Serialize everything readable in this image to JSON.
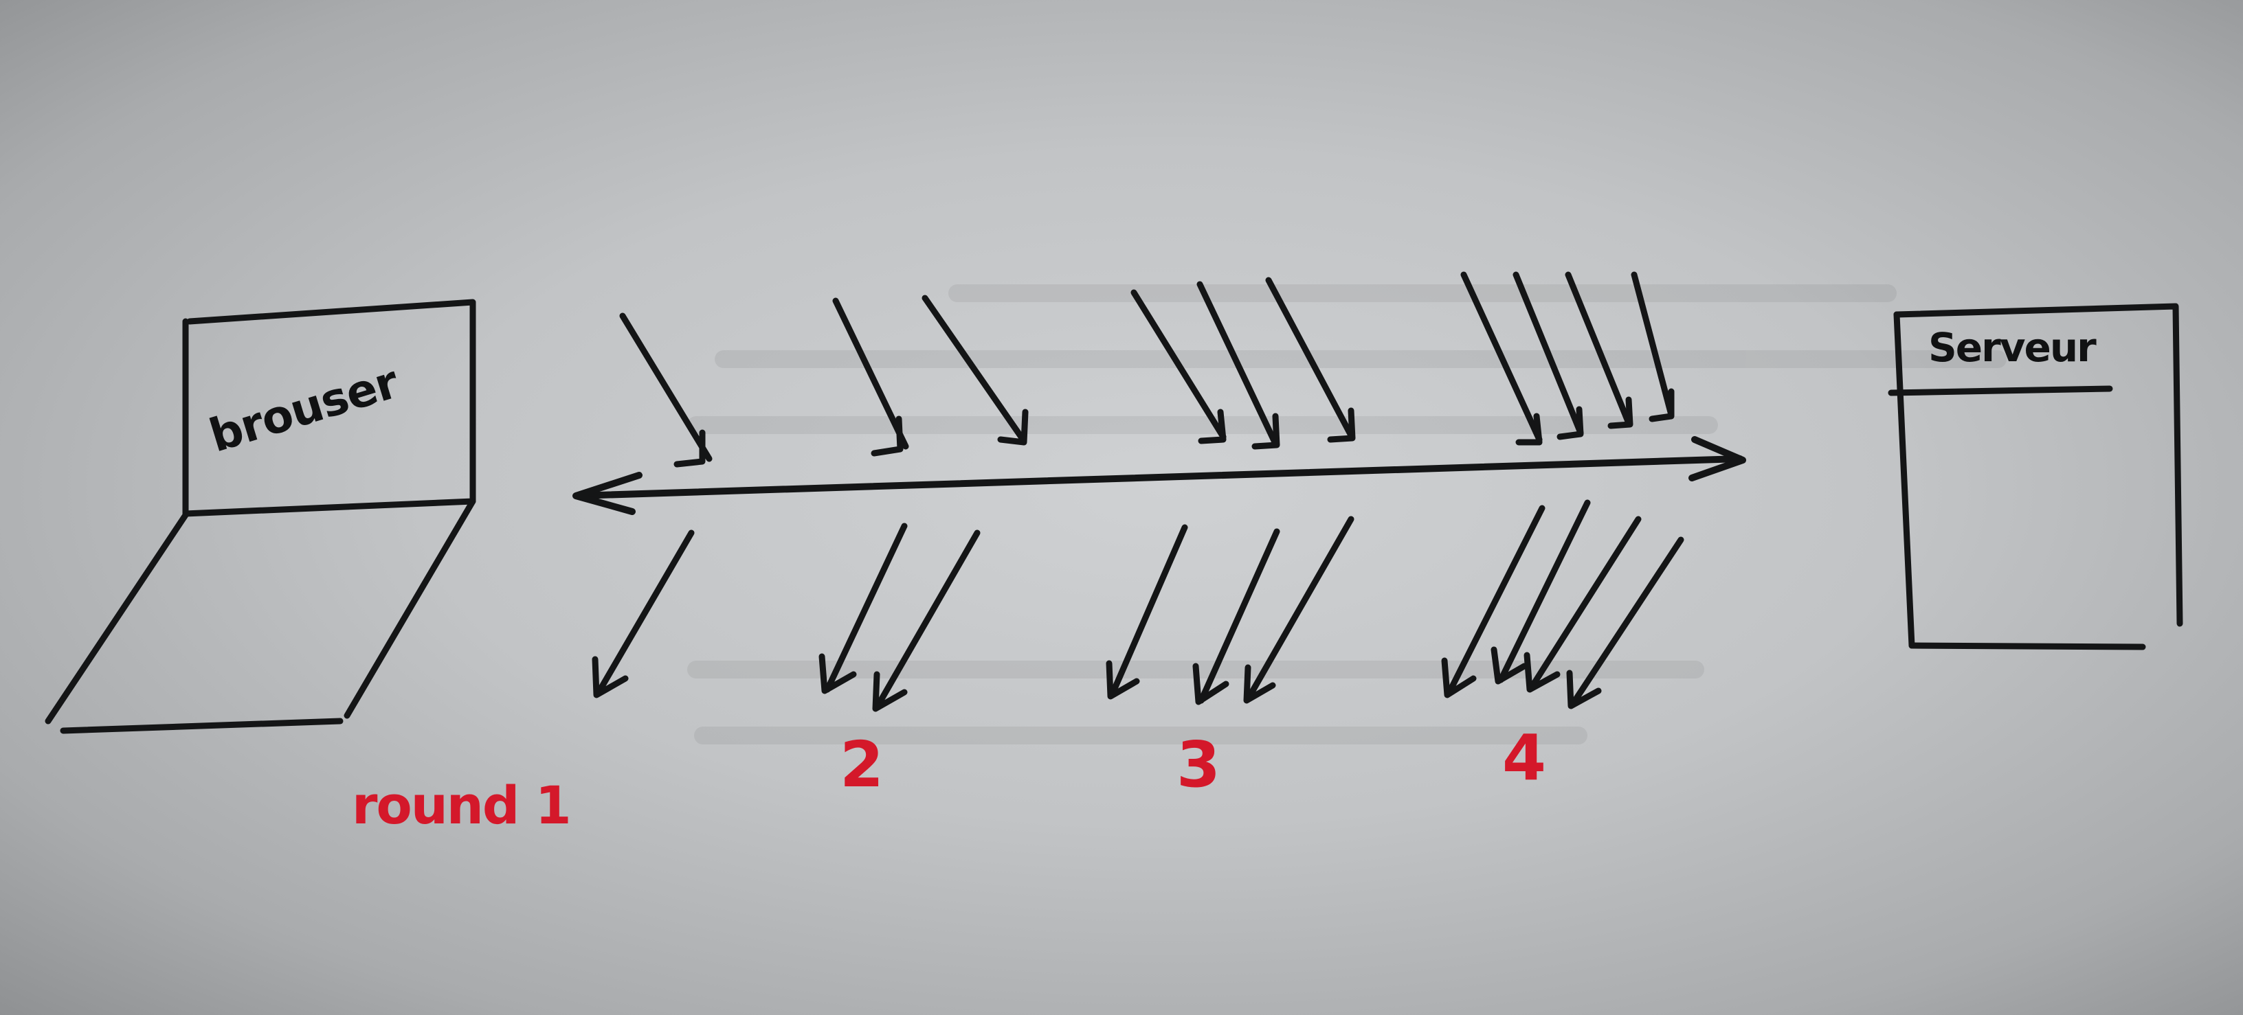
{
  "diagram": {
    "browser_label": "brouser",
    "server_label": "Serveur",
    "round_labels": [
      "round 1",
      "2",
      "3",
      "4"
    ],
    "rounds": [
      {
        "label": "round 1",
        "requests": 1,
        "responses": 1
      },
      {
        "label": "2",
        "requests": 2,
        "responses": 2
      },
      {
        "label": "3",
        "requests": 3,
        "responses": 3
      },
      {
        "label": "4",
        "requests": 4,
        "responses": 4
      }
    ],
    "colors": {
      "ink": "#141516",
      "label_red": "#d4182a",
      "paper": "#c4c6c8"
    }
  }
}
